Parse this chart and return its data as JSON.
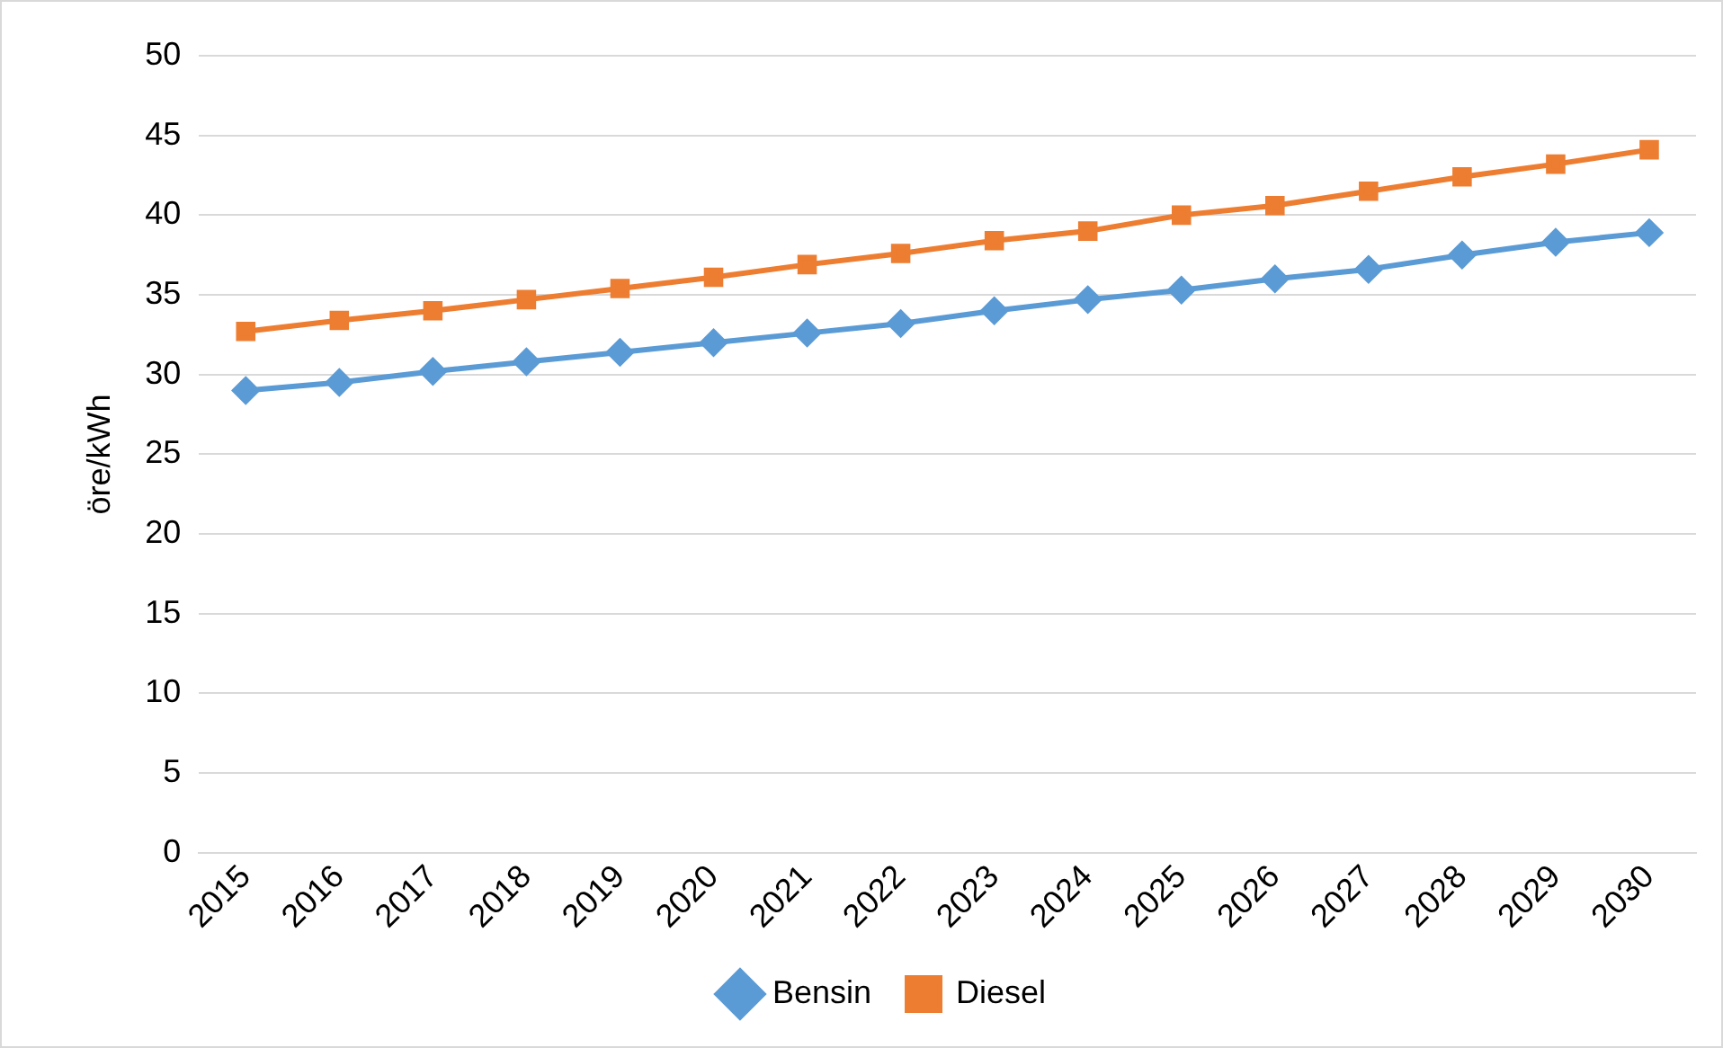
{
  "chart_data": {
    "type": "line",
    "ylabel": "öre/kWh",
    "categories": [
      "2015",
      "2016",
      "2017",
      "2018",
      "2019",
      "2020",
      "2021",
      "2022",
      "2023",
      "2024",
      "2025",
      "2026",
      "2027",
      "2028",
      "2029",
      "2030"
    ],
    "series": [
      {
        "name": "Bensin",
        "color": "#5b9bd5",
        "marker": "diamond",
        "values": [
          29.0,
          29.5,
          30.2,
          30.8,
          31.4,
          32.0,
          32.6,
          33.2,
          34.0,
          34.7,
          35.3,
          36.0,
          36.6,
          37.5,
          38.3,
          38.9
        ]
      },
      {
        "name": "Diesel",
        "color": "#ed7d31",
        "marker": "square",
        "values": [
          32.7,
          33.4,
          34.0,
          34.7,
          35.4,
          36.1,
          36.9,
          37.6,
          38.4,
          39.0,
          40.0,
          40.6,
          41.5,
          42.4,
          43.2,
          44.1
        ]
      }
    ],
    "ylim": [
      0,
      50
    ],
    "yticks": [
      0,
      5,
      10,
      15,
      20,
      25,
      30,
      35,
      40,
      45,
      50
    ],
    "grid": "y",
    "legend": "bottom",
    "line_style": "solid"
  }
}
